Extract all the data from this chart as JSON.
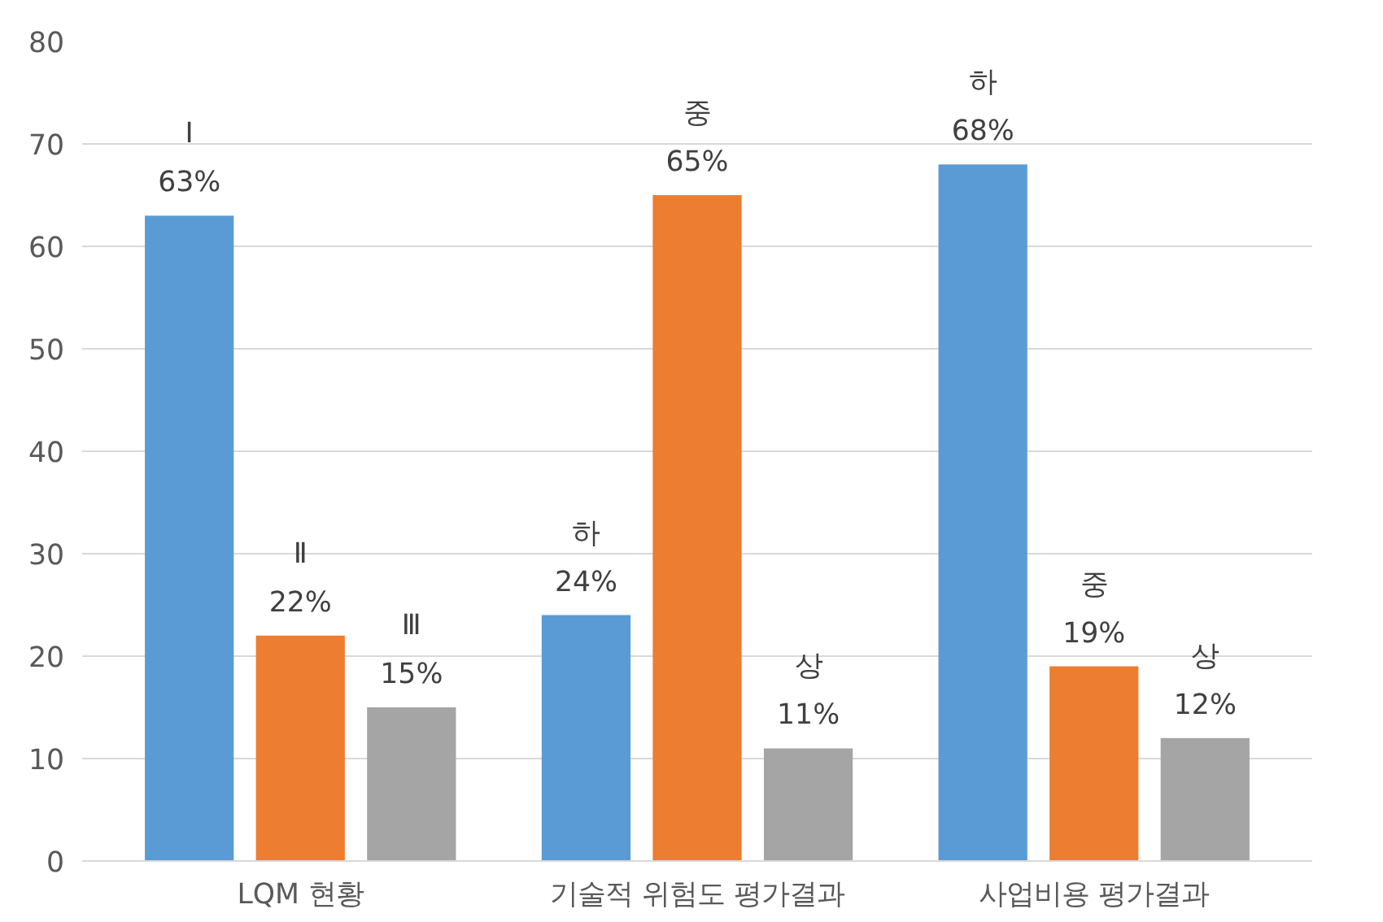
{
  "chart_data": {
    "type": "bar",
    "categories": [
      "LQM 현황",
      "기술적 위험도 평가결과",
      "사업비용 평가결과"
    ],
    "series": [
      {
        "color": "#5b9bd5",
        "values": [
          63,
          24,
          68
        ],
        "value_labels": [
          "Ⅰ\n63%",
          "하\n24%",
          "하\n68%"
        ]
      },
      {
        "color": "#ed7d31",
        "values": [
          22,
          65,
          19
        ],
        "value_labels": [
          "Ⅱ\n22%",
          "중\n65%",
          "중\n19%"
        ]
      },
      {
        "color": "#a5a5a5",
        "values": [
          15,
          11,
          12
        ],
        "value_labels": [
          "Ⅲ\n15%",
          "상\n11%",
          "상\n12%"
        ]
      }
    ],
    "ylim": [
      0,
      80
    ],
    "yticks": [
      0,
      10,
      20,
      30,
      40,
      50,
      60,
      70,
      80
    ],
    "grid": "y"
  }
}
